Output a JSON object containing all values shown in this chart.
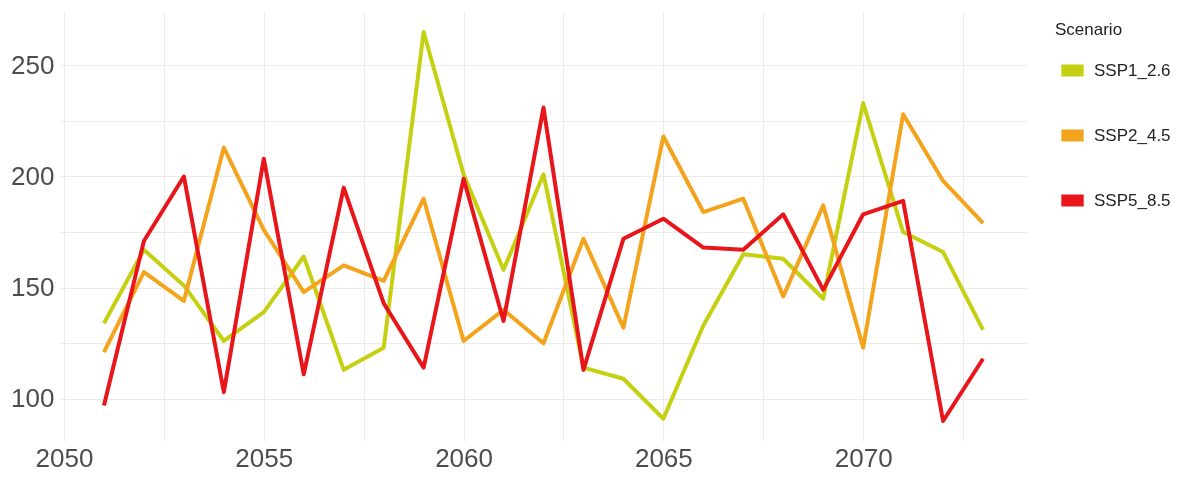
{
  "chart_data": {
    "type": "line",
    "legend_title": "Scenario",
    "legend": "right",
    "grid": true,
    "x": [
      2051,
      2052,
      2053,
      2054,
      2055,
      2056,
      2057,
      2058,
      2059,
      2060,
      2061,
      2062,
      2063,
      2064,
      2065,
      2066,
      2067,
      2068,
      2069,
      2070,
      2071,
      2072,
      2073
    ],
    "series": [
      {
        "name": "SSP1_2.6",
        "color": "#c5d012",
        "values": [
          134,
          167,
          151,
          126,
          139,
          164,
          113,
          123,
          265,
          201,
          158,
          201,
          114,
          109,
          91,
          133,
          165,
          163,
          145,
          233,
          175,
          166,
          131
        ]
      },
      {
        "name": "SSP2_4.5",
        "color": "#f3a41c",
        "values": [
          121,
          157,
          144,
          213,
          176,
          148,
          160,
          153,
          190,
          126,
          140,
          125,
          172,
          132,
          218,
          184,
          190,
          146,
          187,
          123,
          228,
          198,
          179
        ]
      },
      {
        "name": "SSP5_8.5",
        "color": "#e8161b",
        "values": [
          97,
          171,
          200,
          103,
          208,
          111,
          195,
          143,
          114,
          199,
          135,
          231,
          113,
          172,
          181,
          168,
          167,
          183,
          149,
          183,
          189,
          90,
          118
        ]
      }
    ],
    "xlim": [
      2049.9,
      2074.1
    ],
    "ylim": [
      81,
      274
    ],
    "xticks": [
      2050,
      {
        "value": 2052.5,
        "label": null
      },
      2055,
      {
        "value": 2057.5,
        "label": null
      },
      2060,
      {
        "value": 2062.5,
        "label": null
      },
      2065,
      {
        "value": 2067.5,
        "label": null
      },
      2070,
      {
        "value": 2072.5,
        "label": null
      }
    ],
    "yticks": [
      100,
      {
        "value": 125,
        "label": null
      },
      150,
      {
        "value": 175,
        "label": null
      },
      200,
      {
        "value": 225,
        "label": null
      },
      250
    ]
  }
}
